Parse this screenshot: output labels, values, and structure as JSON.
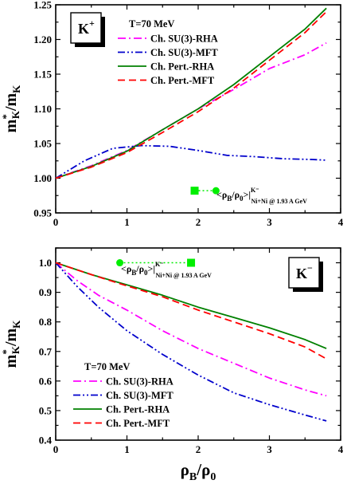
{
  "chart_data": [
    {
      "type": "line",
      "panel_label": "K",
      "panel_label_sup": "+",
      "temperature_label": "T=70 MeV",
      "ylabel_main": "m",
      "ylabel_sup": "*",
      "ylabel_sub": "K",
      "ylabel_den": "/m",
      "ylabel_den_sub": "K",
      "xlim": [
        0,
        4
      ],
      "ylim": [
        0.95,
        1.25
      ],
      "xticks": [
        "0",
        "1",
        "2",
        "3",
        "4"
      ],
      "yticks": [
        "0.95",
        "1.00",
        "1.05",
        "1.10",
        "1.15",
        "1.20",
        "1.25"
      ],
      "legend_position": "top-left",
      "annotation": {
        "text": "<ρ",
        "sub1": "B",
        "mid": "/ρ",
        "sub2": "0",
        "end": ">|",
        "sup": "K⁻",
        "sub3": "Ni+Ni @ 1.93 A GeV",
        "marker_range": [
          1.95,
          2.25
        ]
      },
      "series": [
        {
          "name": "Ch. SU(3)-RHA",
          "color": "#ff00ff",
          "dash": "dashdot",
          "x": [
            0,
            0.5,
            1.0,
            1.5,
            2.0,
            2.5,
            3.0,
            3.5,
            3.8
          ],
          "y": [
            1.0,
            1.018,
            1.04,
            1.07,
            1.1,
            1.128,
            1.158,
            1.178,
            1.195
          ]
        },
        {
          "name": "Ch. SU(3)-MFT",
          "color": "#0000cc",
          "dash": "dashdotdot",
          "x": [
            0,
            0.4,
            0.8,
            1.2,
            1.6,
            2.0,
            2.4,
            2.8,
            3.2,
            3.6,
            3.8
          ],
          "y": [
            1.0,
            1.025,
            1.043,
            1.047,
            1.046,
            1.04,
            1.033,
            1.031,
            1.028,
            1.027,
            1.026
          ]
        },
        {
          "name": "Ch. Pert.-RHA",
          "color": "#008000",
          "dash": "solid",
          "x": [
            0,
            0.5,
            1.0,
            1.5,
            2.0,
            2.5,
            3.0,
            3.5,
            3.8
          ],
          "y": [
            1.0,
            1.017,
            1.039,
            1.07,
            1.1,
            1.135,
            1.175,
            1.215,
            1.245
          ]
        },
        {
          "name": "Ch. Pert.-MFT",
          "color": "#ff0000",
          "dash": "dashed",
          "x": [
            0,
            0.5,
            1.0,
            1.5,
            2.0,
            2.5,
            3.0,
            3.5,
            3.8
          ],
          "y": [
            1.0,
            1.016,
            1.037,
            1.066,
            1.096,
            1.13,
            1.17,
            1.21,
            1.24
          ]
        }
      ]
    },
    {
      "type": "line",
      "panel_label": "K",
      "panel_label_sup": "−",
      "temperature_label": "T=70 MeV",
      "ylabel_main": "m",
      "ylabel_sup": "*",
      "ylabel_sub": "K",
      "ylabel_den": "/m",
      "ylabel_den_sub": "K",
      "xlabel_main": "ρ",
      "xlabel_sub1": "B",
      "xlabel_mid": "/ρ",
      "xlabel_sub2": "0",
      "xlim": [
        0,
        4
      ],
      "ylim": [
        0.4,
        1.05
      ],
      "xticks": [
        "0",
        "1",
        "2",
        "3",
        "4"
      ],
      "yticks": [
        "0.4",
        "0.5",
        "0.6",
        "0.7",
        "0.8",
        "0.9",
        "1.0"
      ],
      "legend_position": "bottom-left",
      "annotation": {
        "text": "<ρ",
        "sub1": "B",
        "mid": "/ρ",
        "sub2": "0",
        "end": ">|",
        "sup": "K⁻",
        "sub3": "Ni+Ni @ 1.93 A GeV",
        "marker_range": [
          0.9,
          1.9
        ]
      },
      "series": [
        {
          "name": "Ch. SU(3)-RHA",
          "color": "#ff00ff",
          "dash": "dashdot",
          "x": [
            0,
            0.3,
            0.6,
            1.0,
            1.5,
            2.0,
            2.5,
            3.0,
            3.5,
            3.8
          ],
          "y": [
            1.0,
            0.94,
            0.89,
            0.84,
            0.77,
            0.71,
            0.66,
            0.61,
            0.57,
            0.55
          ]
        },
        {
          "name": "Ch. SU(3)-MFT",
          "color": "#0000cc",
          "dash": "dashdotdot",
          "x": [
            0,
            0.3,
            0.6,
            1.0,
            1.5,
            2.0,
            2.5,
            3.0,
            3.5,
            3.8
          ],
          "y": [
            1.0,
            0.92,
            0.85,
            0.77,
            0.69,
            0.62,
            0.56,
            0.52,
            0.485,
            0.465
          ]
        },
        {
          "name": "Ch. Pert.-RHA",
          "color": "#008000",
          "dash": "solid",
          "x": [
            0,
            0.5,
            1.0,
            1.5,
            2.0,
            2.5,
            3.0,
            3.5,
            3.8
          ],
          "y": [
            1.0,
            0.96,
            0.925,
            0.89,
            0.85,
            0.815,
            0.78,
            0.74,
            0.71
          ]
        },
        {
          "name": "Ch. Pert.-MFT",
          "color": "#ff0000",
          "dash": "dashed",
          "x": [
            0,
            0.5,
            1.0,
            1.5,
            2.0,
            2.5,
            3.0,
            3.5,
            3.8
          ],
          "y": [
            1.0,
            0.96,
            0.922,
            0.885,
            0.84,
            0.8,
            0.76,
            0.715,
            0.675
          ]
        }
      ]
    }
  ]
}
